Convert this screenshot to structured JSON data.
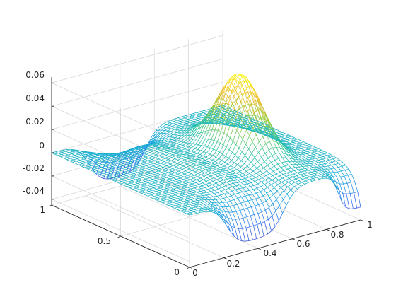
{
  "chart_data": {
    "type": "mesh3d",
    "title": "",
    "xlabel": "",
    "ylabel": "",
    "zlabel": "",
    "xlim": [
      0,
      1
    ],
    "ylim": [
      0,
      1
    ],
    "zlim": [
      -0.045,
      0.065
    ],
    "x_ticks": [
      "0",
      "0.2",
      "0.4",
      "0.6",
      "0.8",
      "1"
    ],
    "y_ticks": [
      "0",
      "0.5",
      "1"
    ],
    "z_ticks": [
      "-0.04",
      "-0.02",
      "0",
      "0.02",
      "0.04",
      "0.06"
    ],
    "grid": true,
    "box": true,
    "colormap": "parula",
    "colormap_colors": [
      "#3e26a8",
      "#2f6ef8",
      "#15a6de",
      "#2ac4a4",
      "#90cc39",
      "#f0b92c",
      "#f9fb0e"
    ],
    "z_min_value": -0.045,
    "z_max_value": 0.065,
    "surface_features": [
      {
        "kind": "peak",
        "x": 0.7,
        "y": 0.5,
        "z": 0.065
      },
      {
        "kind": "trough",
        "x": 0.35,
        "y": 0.05,
        "z": -0.04
      },
      {
        "kind": "trough",
        "x": 0.35,
        "y": 0.95,
        "z": -0.04
      },
      {
        "kind": "step",
        "x": 0.95,
        "y": 0.05,
        "z": -0.035
      },
      {
        "kind": "plateau",
        "x": 0.3,
        "y": 0.5,
        "z": 0.0
      }
    ]
  }
}
